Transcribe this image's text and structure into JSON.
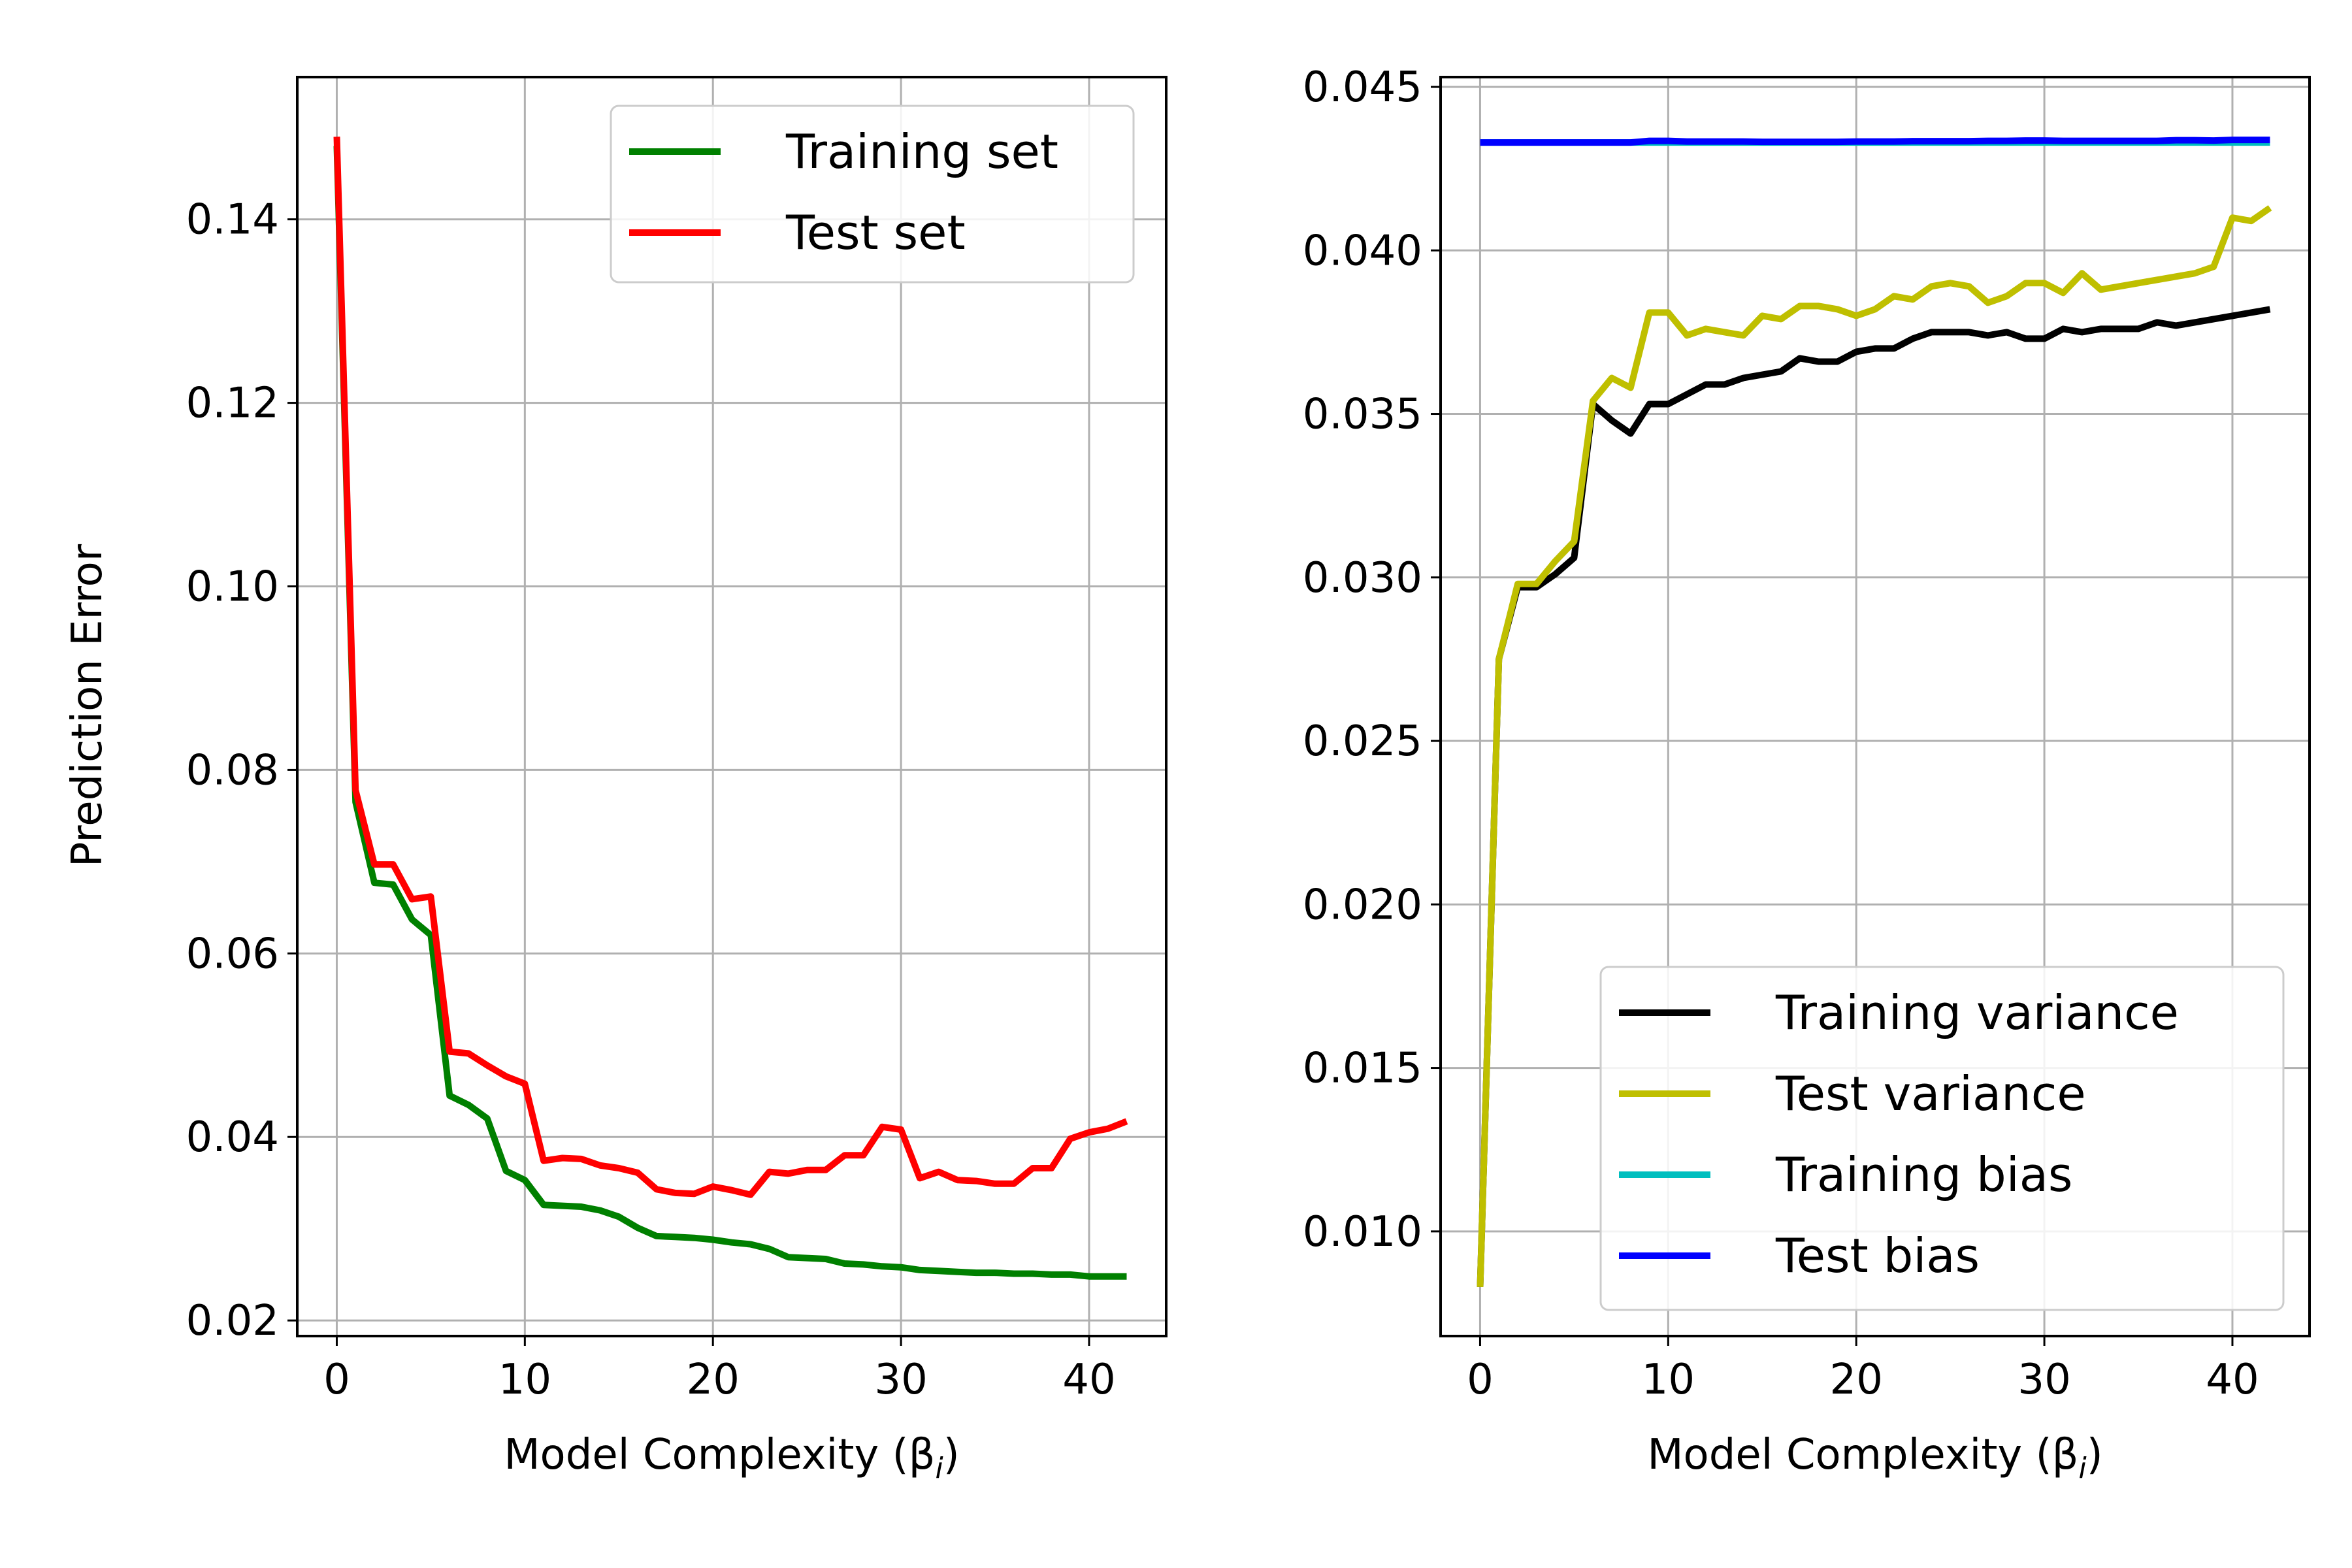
{
  "chart_data": [
    {
      "type": "line",
      "title": "",
      "xlabel": "Model Complexity (β",
      "xlabel_sub": "i",
      "xlabel_close": ")",
      "ylabel": "Prediction Error",
      "xlim": [
        -2.1,
        44.1
      ],
      "ylim": [
        0.0183,
        0.1555
      ],
      "grid": true,
      "legend_position": "top-right",
      "x_ticks": [
        0,
        10,
        20,
        30,
        40
      ],
      "x_tick_labels": [
        "0",
        "10",
        "20",
        "30",
        "40"
      ],
      "y_ticks": [
        0.02,
        0.04,
        0.06,
        0.08,
        0.1,
        0.12,
        0.14
      ],
      "y_tick_labels": [
        "0.02",
        "0.04",
        "0.06",
        "0.08",
        "0.10",
        "0.12",
        "0.14"
      ],
      "x": [
        0,
        1,
        2,
        3,
        4,
        5,
        6,
        7,
        8,
        9,
        10,
        11,
        12,
        13,
        14,
        15,
        16,
        17,
        18,
        19,
        20,
        21,
        22,
        23,
        24,
        25,
        26,
        27,
        28,
        29,
        30,
        31,
        32,
        33,
        34,
        35,
        36,
        37,
        38,
        39,
        40,
        41,
        42
      ],
      "series": [
        {
          "name": "Training set",
          "color": "#008000",
          "values": [
            0.148,
            0.0765,
            0.0677,
            0.0675,
            0.0637,
            0.062,
            0.0445,
            0.0435,
            0.042,
            0.0363,
            0.0353,
            0.0326,
            0.0325,
            0.0324,
            0.032,
            0.0313,
            0.0301,
            0.0292,
            0.0291,
            0.029,
            0.0288,
            0.0285,
            0.0283,
            0.0278,
            0.0269,
            0.0268,
            0.0267,
            0.0262,
            0.0261,
            0.0259,
            0.0258,
            0.0255,
            0.0254,
            0.0253,
            0.0252,
            0.0252,
            0.0251,
            0.0251,
            0.025,
            0.025,
            0.0248,
            0.0248,
            0.0248
          ]
        },
        {
          "name": "Test set",
          "color": "#ff0000",
          "values": [
            0.149,
            0.0778,
            0.0697,
            0.0697,
            0.0659,
            0.0662,
            0.0493,
            0.0491,
            0.0478,
            0.0466,
            0.0458,
            0.0374,
            0.0377,
            0.0376,
            0.0369,
            0.0366,
            0.0361,
            0.0343,
            0.0339,
            0.0338,
            0.0346,
            0.0342,
            0.0337,
            0.0362,
            0.036,
            0.0364,
            0.0364,
            0.038,
            0.038,
            0.0411,
            0.0408,
            0.0355,
            0.0362,
            0.0353,
            0.0352,
            0.0349,
            0.0349,
            0.0366,
            0.0366,
            0.0398,
            0.0405,
            0.0409,
            0.0417
          ]
        }
      ]
    },
    {
      "type": "line",
      "title": "",
      "xlabel": "Model Complexity (β",
      "xlabel_sub": "i",
      "xlabel_close": ")",
      "ylabel": "",
      "xlim": [
        -2.1,
        44.1
      ],
      "ylim": [
        0.0068,
        0.0453
      ],
      "grid": true,
      "legend_position": "lower-right",
      "x_ticks": [
        0,
        10,
        20,
        30,
        40
      ],
      "x_tick_labels": [
        "0",
        "10",
        "20",
        "30",
        "40"
      ],
      "y_ticks": [
        0.01,
        0.015,
        0.02,
        0.025,
        0.03,
        0.035,
        0.04,
        0.045
      ],
      "y_tick_labels": [
        "0.010",
        "0.015",
        "0.020",
        "0.025",
        "0.030",
        "0.035",
        "0.040",
        "0.045"
      ],
      "x": [
        0,
        1,
        2,
        3,
        4,
        5,
        6,
        7,
        8,
        9,
        10,
        11,
        12,
        13,
        14,
        15,
        16,
        17,
        18,
        19,
        20,
        21,
        22,
        23,
        24,
        25,
        26,
        27,
        28,
        29,
        30,
        31,
        32,
        33,
        34,
        35,
        36,
        37,
        38,
        39,
        40,
        41,
        42
      ],
      "series": [
        {
          "name": "Training variance",
          "color": "#000000",
          "values": [
            0.0083,
            0.0275,
            0.0297,
            0.0297,
            0.0301,
            0.0306,
            0.0353,
            0.0348,
            0.0344,
            0.0353,
            0.0353,
            0.0356,
            0.0359,
            0.0359,
            0.0361,
            0.0362,
            0.0363,
            0.0367,
            0.0366,
            0.0366,
            0.0369,
            0.037,
            0.037,
            0.0373,
            0.0375,
            0.0375,
            0.0375,
            0.0374,
            0.0375,
            0.0373,
            0.0373,
            0.0376,
            0.0375,
            0.0376,
            0.0376,
            0.0376,
            0.0378,
            0.0377,
            0.0378,
            0.0379,
            0.038,
            0.0381,
            0.0382
          ]
        },
        {
          "name": "Test variance",
          "color": "#bfbf00",
          "values": [
            0.0083,
            0.0275,
            0.0298,
            0.0298,
            0.0305,
            0.0311,
            0.0354,
            0.0361,
            0.0358,
            0.0381,
            0.0381,
            0.0374,
            0.0376,
            0.0375,
            0.0374,
            0.038,
            0.0379,
            0.0383,
            0.0383,
            0.0382,
            0.038,
            0.0382,
            0.0386,
            0.0385,
            0.0389,
            0.039,
            0.0389,
            0.0384,
            0.0386,
            0.039,
            0.039,
            0.0387,
            0.0393,
            0.0388,
            0.0389,
            0.039,
            0.0391,
            0.0392,
            0.0393,
            0.0395,
            0.041,
            0.0409,
            0.0413
          ]
        },
        {
          "name": "Training bias",
          "color": "#00bfbf",
          "values": [
            0.0433,
            0.0433,
            0.0433,
            0.0433,
            0.0433,
            0.0433,
            0.0433,
            0.0433,
            0.0433,
            0.0433,
            0.0433,
            0.0433,
            0.0433,
            0.0433,
            0.0433,
            0.0433,
            0.0433,
            0.0433,
            0.0433,
            0.0433,
            0.0433,
            0.0433,
            0.0433,
            0.0433,
            0.0433,
            0.0433,
            0.0433,
            0.0433,
            0.0433,
            0.0433,
            0.0433,
            0.0433,
            0.0433,
            0.0433,
            0.0433,
            0.0433,
            0.0433,
            0.0433,
            0.0433,
            0.0433,
            0.0433,
            0.0433,
            0.0433
          ]
        },
        {
          "name": "Test bias",
          "color": "#0000ff",
          "values": [
            0.0433,
            0.0433,
            0.0433,
            0.0433,
            0.0433,
            0.0433,
            0.0433,
            0.0433,
            0.0433,
            0.04335,
            0.04335,
            0.04333,
            0.04333,
            0.04333,
            0.04333,
            0.04332,
            0.04332,
            0.04332,
            0.04332,
            0.04332,
            0.04333,
            0.04333,
            0.04333,
            0.04334,
            0.04334,
            0.04334,
            0.04334,
            0.04335,
            0.04335,
            0.04336,
            0.04336,
            0.04335,
            0.04335,
            0.04335,
            0.04335,
            0.04335,
            0.04335,
            0.04337,
            0.04337,
            0.04336,
            0.04338,
            0.04338,
            0.04338
          ]
        }
      ]
    }
  ]
}
